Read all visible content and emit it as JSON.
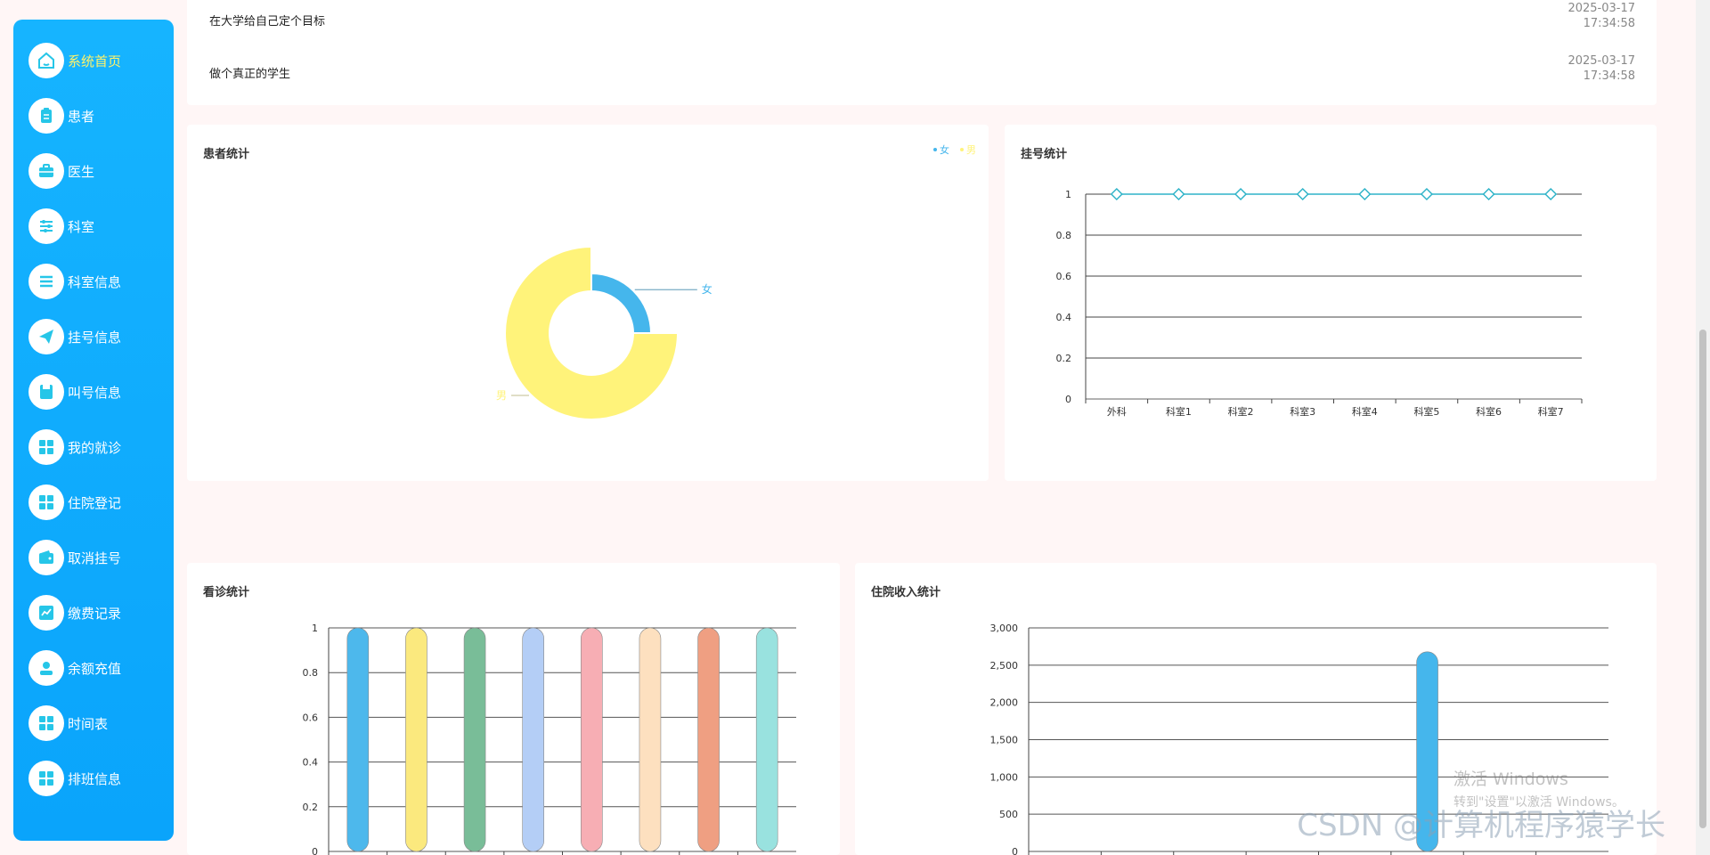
{
  "sidebar": {
    "items": [
      {
        "label": "系统首页",
        "icon": "home-icon",
        "active": true
      },
      {
        "label": "患者",
        "icon": "clipboard-icon"
      },
      {
        "label": "医生",
        "icon": "briefcase-icon"
      },
      {
        "label": "科室",
        "icon": "sliders-icon"
      },
      {
        "label": "科室信息",
        "icon": "list-icon"
      },
      {
        "label": "挂号信息",
        "icon": "send-icon"
      },
      {
        "label": "叫号信息",
        "icon": "save-icon"
      },
      {
        "label": "我的就诊",
        "icon": "grid-icon"
      },
      {
        "label": "住院登记",
        "icon": "grid-icon"
      },
      {
        "label": "取消挂号",
        "icon": "wallet-icon"
      },
      {
        "label": "缴费记录",
        "icon": "chart-icon"
      },
      {
        "label": "余额充值",
        "icon": "user-icon"
      },
      {
        "label": "时间表",
        "icon": "grid-icon"
      },
      {
        "label": "排班信息",
        "icon": "grid-icon"
      }
    ]
  },
  "notices": [
    {
      "title": "在大学给自己定个目标",
      "date": "2025-03-17",
      "time": "17:34:58"
    },
    {
      "title": "做个真正的学生",
      "date": "2025-03-17",
      "time": "17:34:58"
    }
  ],
  "colors": {
    "primary": "#0aa4fb",
    "active_text": "#fff36a",
    "pie_female": "#45b6ec",
    "pie_male": "#fff37a",
    "line": "#2fb3c8"
  },
  "patient_chart": {
    "title": "患者统计",
    "chart_data": {
      "type": "pie",
      "categories": [
        "女",
        "男"
      ],
      "values": [
        1,
        3
      ],
      "legend": "top-right"
    }
  },
  "registration_chart": {
    "title": "挂号统计",
    "chart_data": {
      "type": "line",
      "categories": [
        "外科",
        "科室1",
        "科室2",
        "科室3",
        "科室4",
        "科室5",
        "科室6",
        "科室7"
      ],
      "values": [
        1,
        1,
        1,
        1,
        1,
        1,
        1,
        1
      ],
      "y_ticks": [
        "0",
        "0.2",
        "0.4",
        "0.6",
        "0.8",
        "1"
      ],
      "ylim": [
        0,
        1
      ],
      "grid": true
    }
  },
  "visit_chart": {
    "title": "看诊统计",
    "chart_data": {
      "type": "bar",
      "values": [
        1,
        1,
        1,
        1,
        1,
        1,
        1,
        1
      ],
      "colors": [
        "#4db8ec",
        "#fbe97e",
        "#79bd98",
        "#b4cef6",
        "#f7aeb4",
        "#fde0bf",
        "#ef9f82",
        "#99e2df"
      ],
      "y_ticks": [
        "0",
        "0.2",
        "0.4",
        "0.6",
        "0.8",
        "1"
      ],
      "ylim": [
        0,
        1
      ],
      "grid": true
    }
  },
  "income_chart": {
    "title": "住院收入统计",
    "chart_data": {
      "type": "bar",
      "values": [
        0,
        0,
        0,
        0,
        0,
        2680,
        0,
        0
      ],
      "y_ticks": [
        "0",
        "500",
        "1,000",
        "1,500",
        "2,000",
        "2,500",
        "3,000"
      ],
      "ylim": [
        0,
        3000
      ],
      "grid": true
    }
  },
  "windows_activation": {
    "title": "激活 Windows",
    "subtitle": "转到\"设置\"以激活 Windows。"
  },
  "watermark": "CSDN @计算机程序猿学长"
}
